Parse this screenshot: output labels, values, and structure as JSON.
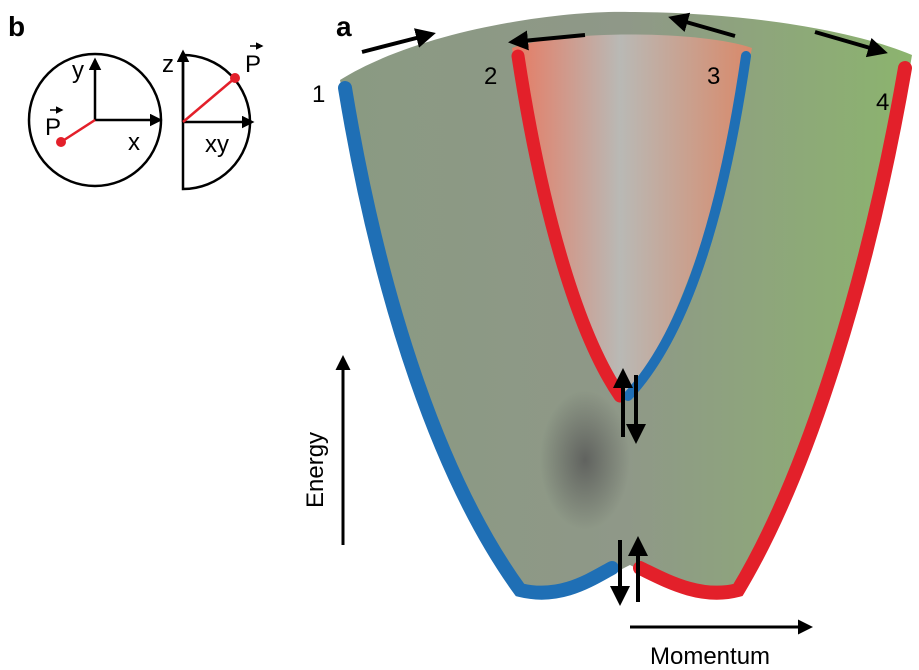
{
  "panel_b": {
    "label": "b",
    "circle_axes": {
      "y": "y",
      "x": "x",
      "p": "P"
    },
    "half_axes": {
      "z": "z",
      "xy": "xy",
      "p": "P"
    }
  },
  "panel_a": {
    "label": "a",
    "bands": [
      "1",
      "2",
      "3",
      "4"
    ],
    "y_axis": "Energy",
    "x_axis": "Momentum"
  }
}
